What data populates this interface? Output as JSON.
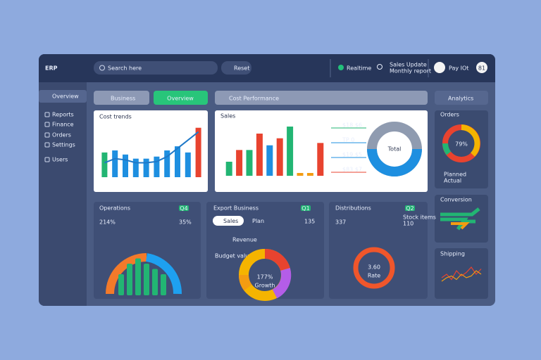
{
  "header": {
    "logo": "ERP",
    "search": "Search here",
    "filter": "Reset",
    "status": "Realtime",
    "note_top": "Sales Update",
    "note_bottom": "Monthly report",
    "user": "Pay IOt",
    "badge": "81"
  },
  "sidebar": {
    "active": "Overview",
    "items": [
      "Reports",
      "Finance",
      "Orders",
      "Settings",
      "Users"
    ]
  },
  "toolbar": {
    "tab_1": "Business",
    "tab_2": "Overview",
    "dropdown": "Cost Performance",
    "right_dropdown": "Analytics"
  },
  "panel_trend": {
    "title": "Cost trends",
    "values": [
      6,
      6.5,
      5.5,
      4.5,
      4.5,
      5,
      6.5,
      7.5,
      6,
      12
    ],
    "colors": [
      "#22b573",
      "#1e8fe0",
      "#1e8fe0",
      "#1e8fe0",
      "#1e8fe0",
      "#1e8fe0",
      "#1e8fe0",
      "#1e8fe0",
      "#1e8fe0",
      "#e8432f"
    ],
    "line": [
      3.5,
      4.5,
      4.2,
      3.5,
      3.5,
      3.8,
      5,
      7,
      9,
      11
    ],
    "line_color": "#1e78c8",
    "ylim": [
      0,
      14
    ]
  },
  "panel_cost": {
    "title": "Sales",
    "values": [
      3,
      5.5,
      5.5,
      9,
      6.5,
      8,
      10.5,
      0.6,
      0.6,
      7
    ],
    "colors": [
      "#22b573",
      "#e8432f",
      "#22b573",
      "#e8432f",
      "#1e8fe0",
      "#e8432f",
      "#22b573",
      "#f39c12",
      "#f39c12",
      "#e8432f"
    ],
    "ylim": [
      0,
      12
    ],
    "legend": [
      "$18 $6",
      "TP 0",
      "$19 $5",
      "$83 $7"
    ],
    "donut_label": "Total"
  },
  "card_donut": {
    "title": "Orders",
    "value": "79%",
    "legend": [
      "Planned",
      "Actual"
    ]
  },
  "card_bars": {
    "title": "Conversion"
  },
  "card_line": {
    "title": "Shipping",
    "values": [
      2,
      3,
      1.5,
      4,
      2.5,
      3.5,
      5,
      3,
      4.5
    ],
    "values_2": [
      1,
      2,
      2.5,
      1.5,
      3,
      2,
      2.5,
      4,
      3
    ],
    "ylim": [
      0,
      6
    ]
  },
  "card_a": {
    "title": "Operations",
    "badge": "Q4",
    "value": "214%",
    "value_2": "35%",
    "bars": [
      4,
      6,
      7,
      6,
      5,
      4
    ],
    "ylim": [
      0,
      8
    ]
  },
  "card_b": {
    "title": "Export Business",
    "badge": "Q1",
    "pill_1": "Sales",
    "pill_2": "Plan",
    "number": "135",
    "callout_1": "Revenue",
    "callout_2": "Budget value",
    "value": "177%",
    "caption": "Growth"
  },
  "card_c": {
    "title": "Distributions",
    "badge": "Q2",
    "value": "337",
    "value_2": "110",
    "value_2_caption": "Stock items",
    "circle_value": "3.60",
    "circle_caption": "Rate"
  }
}
